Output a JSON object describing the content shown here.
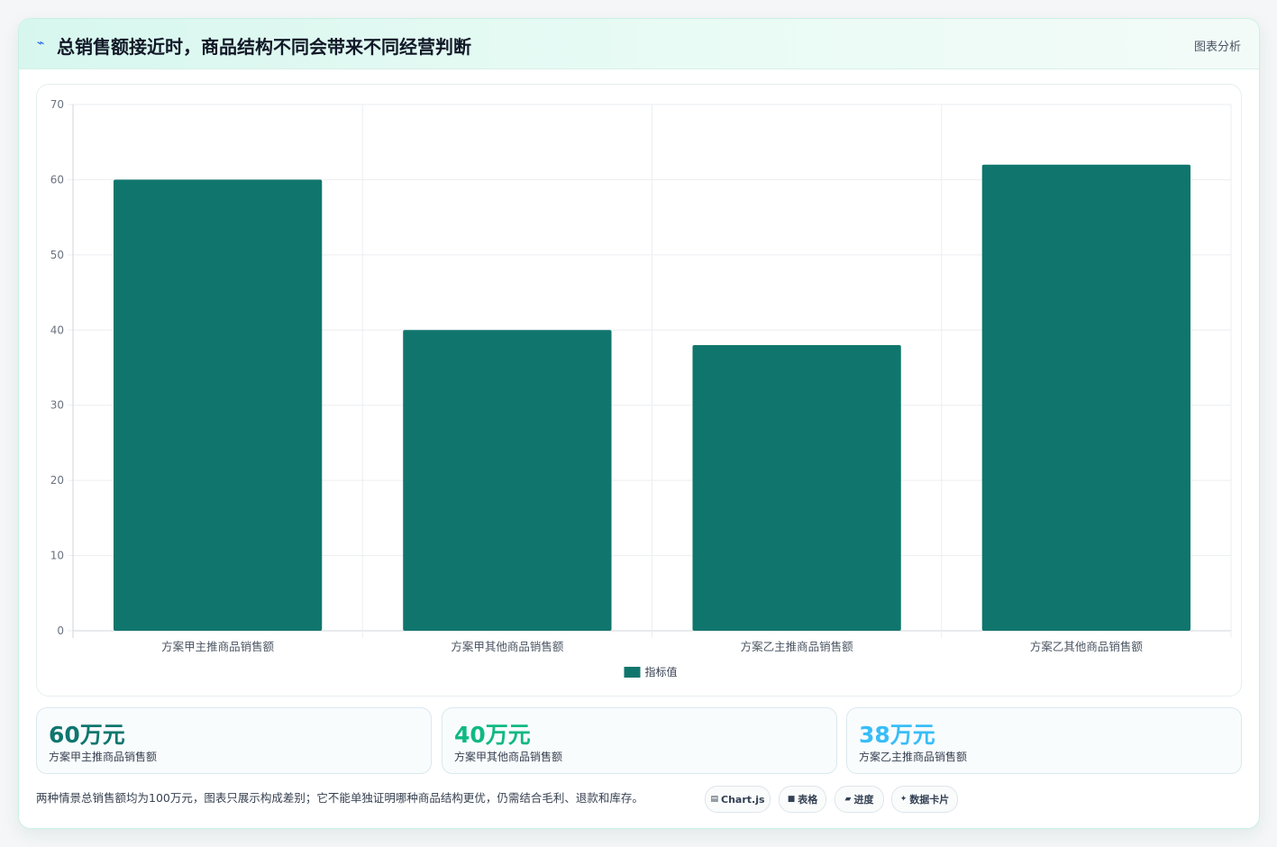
{
  "header": {
    "icon": "bolt-icon",
    "title": "总销售额接近时，商品结构不同会带来不同经营判断",
    "tag": "图表分析"
  },
  "colors": {
    "bar": "#10766d",
    "kpi1": "#0f766e",
    "kpi2": "#10b981",
    "kpi3": "#38bdf8"
  },
  "chart_data": {
    "type": "bar",
    "categories": [
      "方案甲主推商品销售额",
      "方案甲其他商品销售额",
      "方案乙主推商品销售额",
      "方案乙其他商品销售额"
    ],
    "series": [
      {
        "name": "指标值",
        "values": [
          60,
          40,
          38,
          62
        ]
      }
    ],
    "ylim": [
      0,
      70
    ],
    "yticks": [
      0,
      10,
      20,
      30,
      40,
      50,
      60,
      70
    ],
    "grid": true,
    "legend": "bottom-center"
  },
  "kpis": [
    {
      "value": "60万元",
      "label": "方案甲主推商品销售额"
    },
    {
      "value": "40万元",
      "label": "方案甲其他商品销售额"
    },
    {
      "value": "38万元",
      "label": "方案乙主推商品销售额"
    }
  ],
  "note": "两种情景总销售额均为100万元，图表只展示构成差别；它不能单独证明哪种商品结构更优，仍需结合毛利、退款和库存。",
  "chips": [
    {
      "icon": "chart-icon",
      "label": "Chart.js"
    },
    {
      "icon": "table-icon",
      "label": "表格"
    },
    {
      "icon": "progress-icon",
      "label": "进度"
    },
    {
      "icon": "sparkle-icon",
      "label": "数据卡片"
    }
  ]
}
